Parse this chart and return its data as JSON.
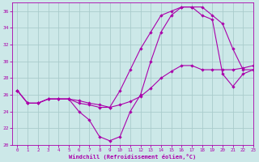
{
  "bg_color": "#cce8e8",
  "line_color": "#aa00aa",
  "grid_color": "#aacccc",
  "xlabel": "Windchill (Refroidissement éolien,°C)",
  "xlim": [
    -0.5,
    23
  ],
  "ylim": [
    20,
    37
  ],
  "yticks": [
    20,
    22,
    24,
    26,
    28,
    30,
    32,
    34,
    36
  ],
  "xticks": [
    0,
    1,
    2,
    3,
    4,
    5,
    6,
    7,
    8,
    9,
    10,
    11,
    12,
    13,
    14,
    15,
    16,
    17,
    18,
    19,
    20,
    21,
    22,
    23
  ],
  "series1_x": [
    0,
    1,
    2,
    3,
    4,
    5,
    6,
    7,
    8,
    9,
    10,
    11,
    12,
    13,
    14,
    15,
    16,
    17,
    18,
    19,
    20,
    21,
    22,
    23
  ],
  "series1_y": [
    26.5,
    25.0,
    25.0,
    25.5,
    25.5,
    25.5,
    24.0,
    23.0,
    21.0,
    20.5,
    21.0,
    24.0,
    26.0,
    30.0,
    33.5,
    35.5,
    36.5,
    36.5,
    36.5,
    35.5,
    34.5,
    31.5,
    29.0,
    29.0
  ],
  "series2_x": [
    0,
    1,
    2,
    3,
    4,
    5,
    6,
    7,
    8,
    9,
    10,
    11,
    12,
    13,
    14,
    15,
    16,
    17,
    18,
    19,
    20,
    21,
    22,
    23
  ],
  "series2_y": [
    26.5,
    25.0,
    25.0,
    25.5,
    25.5,
    25.5,
    25.0,
    24.8,
    24.5,
    24.5,
    26.5,
    29.0,
    31.5,
    33.5,
    35.5,
    36.0,
    36.5,
    36.5,
    35.5,
    35.0,
    28.5,
    27.0,
    28.5,
    29.0
  ],
  "series3_x": [
    0,
    1,
    2,
    3,
    4,
    5,
    6,
    7,
    8,
    9,
    10,
    11,
    12,
    13,
    14,
    15,
    16,
    17,
    18,
    19,
    20,
    21,
    22,
    23
  ],
  "series3_y": [
    26.5,
    25.0,
    25.0,
    25.5,
    25.5,
    25.5,
    25.3,
    25.0,
    24.8,
    24.5,
    24.8,
    25.2,
    25.8,
    26.8,
    28.0,
    28.8,
    29.5,
    29.5,
    29.0,
    29.0,
    29.0,
    29.0,
    29.2,
    29.5
  ]
}
